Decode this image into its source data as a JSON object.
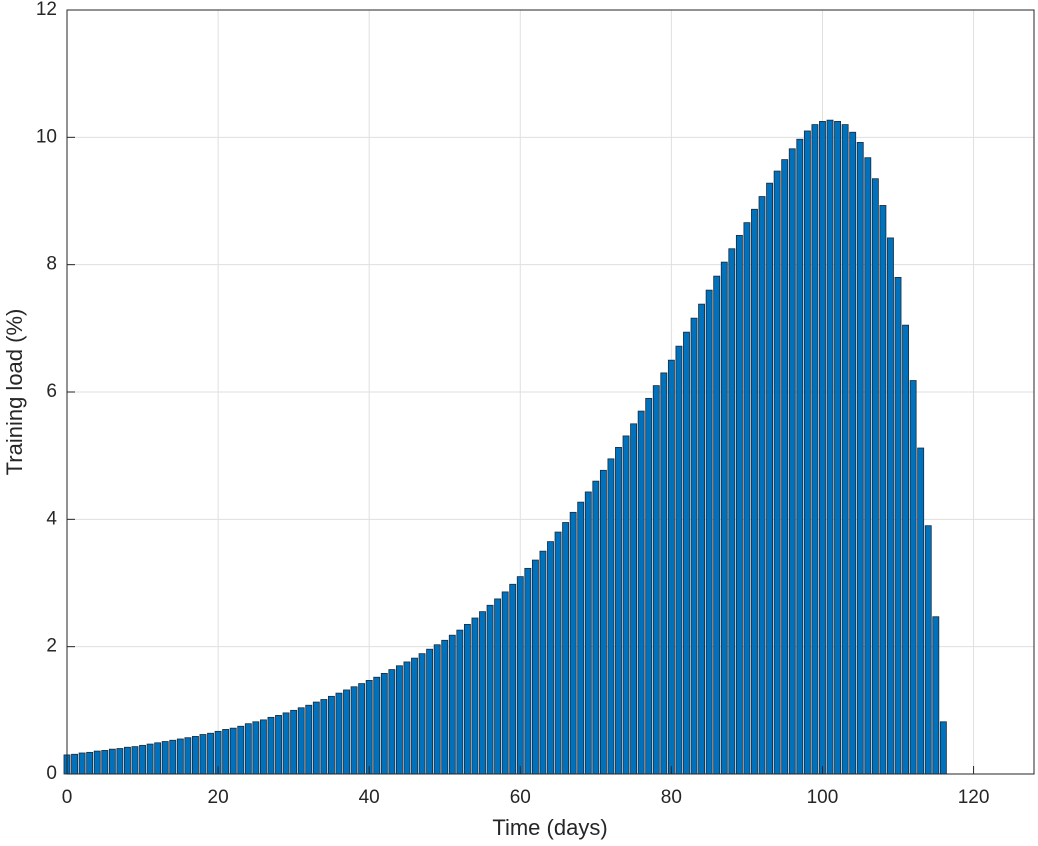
{
  "chart_data": {
    "type": "bar",
    "x_label": "Time (days)",
    "y_label": "Training load (%)",
    "x": [
      0,
      1,
      2,
      3,
      4,
      5,
      6,
      7,
      8,
      9,
      10,
      11,
      12,
      13,
      14,
      15,
      16,
      17,
      18,
      19,
      20,
      21,
      22,
      23,
      24,
      25,
      26,
      27,
      28,
      29,
      30,
      31,
      32,
      33,
      34,
      35,
      36,
      37,
      38,
      39,
      40,
      41,
      42,
      43,
      44,
      45,
      46,
      47,
      48,
      49,
      50,
      51,
      52,
      53,
      54,
      55,
      56,
      57,
      58,
      59,
      60,
      61,
      62,
      63,
      64,
      65,
      66,
      67,
      68,
      69,
      70,
      71,
      72,
      73,
      74,
      75,
      76,
      77,
      78,
      79,
      80,
      81,
      82,
      83,
      84,
      85,
      86,
      87,
      88,
      89,
      90,
      91,
      92,
      93,
      94,
      95,
      96,
      97,
      98,
      99,
      100,
      101,
      102,
      103,
      104,
      105,
      106,
      107,
      108,
      109,
      110,
      111,
      112,
      113,
      114,
      115,
      116
    ],
    "values": [
      0.3,
      0.31,
      0.33,
      0.34,
      0.36,
      0.37,
      0.39,
      0.4,
      0.42,
      0.43,
      0.45,
      0.47,
      0.49,
      0.51,
      0.53,
      0.55,
      0.57,
      0.59,
      0.62,
      0.64,
      0.67,
      0.7,
      0.72,
      0.75,
      0.79,
      0.82,
      0.85,
      0.89,
      0.92,
      0.96,
      1.0,
      1.04,
      1.08,
      1.13,
      1.17,
      1.22,
      1.27,
      1.32,
      1.37,
      1.42,
      1.47,
      1.52,
      1.58,
      1.64,
      1.7,
      1.76,
      1.82,
      1.89,
      1.96,
      2.03,
      2.1,
      2.18,
      2.26,
      2.35,
      2.45,
      2.55,
      2.65,
      2.75,
      2.86,
      2.98,
      3.1,
      3.23,
      3.36,
      3.5,
      3.65,
      3.8,
      3.95,
      4.11,
      4.27,
      4.43,
      4.6,
      4.77,
      4.95,
      5.13,
      5.31,
      5.5,
      5.7,
      5.9,
      6.1,
      6.3,
      6.5,
      6.72,
      6.94,
      7.16,
      7.38,
      7.6,
      7.82,
      8.04,
      8.25,
      8.46,
      8.66,
      8.87,
      9.07,
      9.28,
      9.47,
      9.65,
      9.82,
      9.97,
      10.1,
      10.2,
      10.25,
      10.27,
      10.25,
      10.2,
      10.08,
      9.92,
      9.68,
      9.35,
      8.93,
      8.42,
      7.8,
      7.05,
      6.18,
      5.12,
      3.9,
      2.47,
      0.82
    ],
    "color": "#0072bd",
    "edge_color": "#1a2a3a",
    "xlim": [
      0,
      128
    ],
    "xticks": [
      0,
      20,
      40,
      60,
      80,
      100,
      120
    ],
    "ylim": [
      0,
      12
    ],
    "yticks": [
      0,
      2,
      4,
      6,
      8,
      10,
      12
    ],
    "grid": true
  }
}
